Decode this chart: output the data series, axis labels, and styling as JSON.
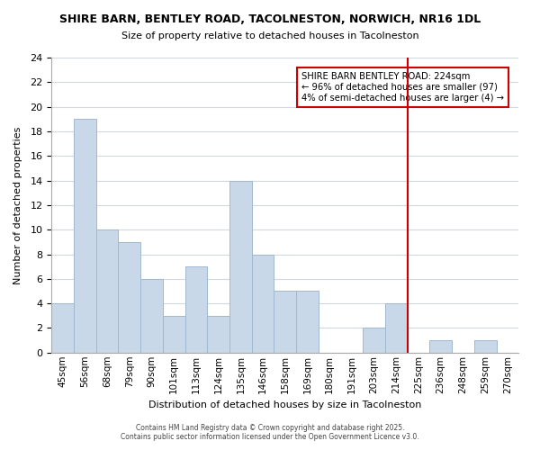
{
  "title": "SHIRE BARN, BENTLEY ROAD, TACOLNESTON, NORWICH, NR16 1DL",
  "subtitle": "Size of property relative to detached houses in Tacolneston",
  "xlabel": "Distribution of detached houses by size in Tacolneston",
  "ylabel": "Number of detached properties",
  "bin_labels": [
    "45sqm",
    "56sqm",
    "68sqm",
    "79sqm",
    "90sqm",
    "101sqm",
    "113sqm",
    "124sqm",
    "135sqm",
    "146sqm",
    "158sqm",
    "169sqm",
    "180sqm",
    "191sqm",
    "203sqm",
    "214sqm",
    "225sqm",
    "236sqm",
    "248sqm",
    "259sqm",
    "270sqm"
  ],
  "bar_heights": [
    4,
    19,
    10,
    9,
    6,
    3,
    7,
    3,
    14,
    8,
    5,
    5,
    0,
    0,
    2,
    4,
    0,
    1,
    0,
    1,
    0
  ],
  "bar_color": "#c8d8e8",
  "bar_edge_color": "#a0b8d0",
  "vline_x": 16,
  "vline_color": "#cc0000",
  "ylim": [
    0,
    24
  ],
  "yticks": [
    0,
    2,
    4,
    6,
    8,
    10,
    12,
    14,
    16,
    18,
    20,
    22,
    24
  ],
  "annotation_title": "SHIRE BARN BENTLEY ROAD: 224sqm",
  "annotation_line1": "← 96% of detached houses are smaller (97)",
  "annotation_line2": "4% of semi-detached houses are larger (4) →",
  "annotation_box_color": "#ffffff",
  "annotation_box_edge": "#cc0000",
  "footer1": "Contains HM Land Registry data © Crown copyright and database right 2025.",
  "footer2": "Contains public sector information licensed under the Open Government Licence v3.0.",
  "background_color": "#ffffff",
  "grid_color": "#d0d8e0"
}
